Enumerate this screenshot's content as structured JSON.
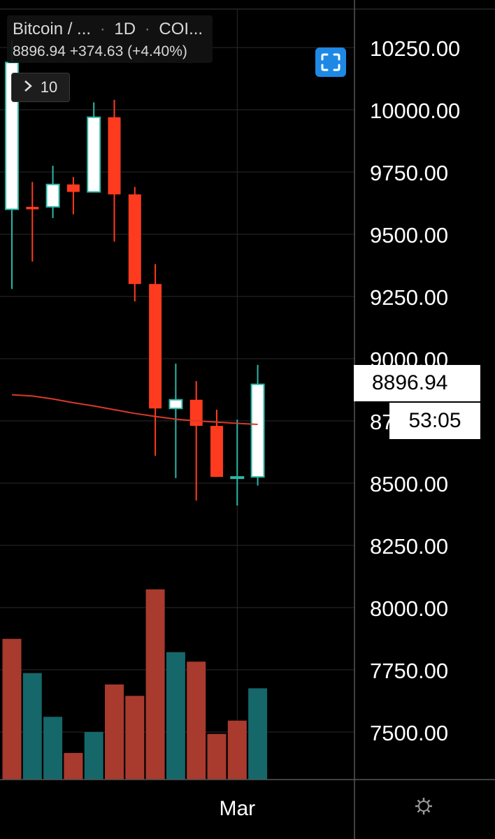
{
  "legend": {
    "symbol": "Bitcoin / ...",
    "interval": "1D",
    "exchange": "COI...",
    "last_price": "8896.94",
    "change": "+374.63",
    "change_pct": "(+4.40%)"
  },
  "indicator_toggle": {
    "count": "10"
  },
  "price_tag": "8896.94",
  "countdown": "53:05",
  "colors": {
    "up": "#ffffff",
    "up_border": "#2bb7a7",
    "down": "#ff3b1f",
    "vol_up": "#15676a",
    "vol_down": "#a93a2e",
    "ma": "#d83a2a",
    "grid": "#2a2a2a"
  },
  "chart_data": {
    "type": "candlestick",
    "y_axis": {
      "tick_labels": [
        "10250.00",
        "10000.00",
        "9750.00",
        "9500.00",
        "9250.00",
        "9000.00",
        "8750.00",
        "8500.00",
        "8250.00",
        "8000.00",
        "7750.00",
        "7500.00"
      ],
      "visible_label_for_8750": "87"
    },
    "x_axis": {
      "tick_labels": [
        "Mar"
      ]
    },
    "candles": [
      {
        "o": 9600,
        "h": 10280,
        "l": 9280,
        "c": 10190
      },
      {
        "o": 9610,
        "h": 9710,
        "l": 9390,
        "c": 9600
      },
      {
        "o": 9610,
        "h": 9775,
        "l": 9565,
        "c": 9700
      },
      {
        "o": 9700,
        "h": 9730,
        "l": 9580,
        "c": 9670
      },
      {
        "o": 9670,
        "h": 10030,
        "l": 9670,
        "c": 9970
      },
      {
        "o": 9970,
        "h": 10040,
        "l": 9470,
        "c": 9660
      },
      {
        "o": 9660,
        "h": 9690,
        "l": 9230,
        "c": 9300
      },
      {
        "o": 9300,
        "h": 9380,
        "l": 8610,
        "c": 8800
      },
      {
        "o": 8800,
        "h": 8980,
        "l": 8520,
        "c": 8835
      },
      {
        "o": 8835,
        "h": 8910,
        "l": 8430,
        "c": 8730
      },
      {
        "o": 8730,
        "h": 8795,
        "l": 8525,
        "c": 8525
      },
      {
        "o": 8525,
        "h": 8755,
        "l": 8410,
        "c": 8525
      },
      {
        "o": 8525,
        "h": 8975,
        "l": 8490,
        "c": 8897
      }
    ],
    "moving_average": [
      8855,
      8850,
      8838,
      8823,
      8810,
      8795,
      8780,
      8768,
      8757,
      8750,
      8745,
      8740,
      8736
    ],
    "volume_relative": [
      0.74,
      0.56,
      0.33,
      0.14,
      0.25,
      0.5,
      0.44,
      1.0,
      0.67,
      0.62,
      0.24,
      0.31,
      0.48
    ],
    "volume_up": [
      false,
      true,
      true,
      false,
      true,
      false,
      false,
      false,
      true,
      false,
      false,
      false,
      true
    ]
  }
}
